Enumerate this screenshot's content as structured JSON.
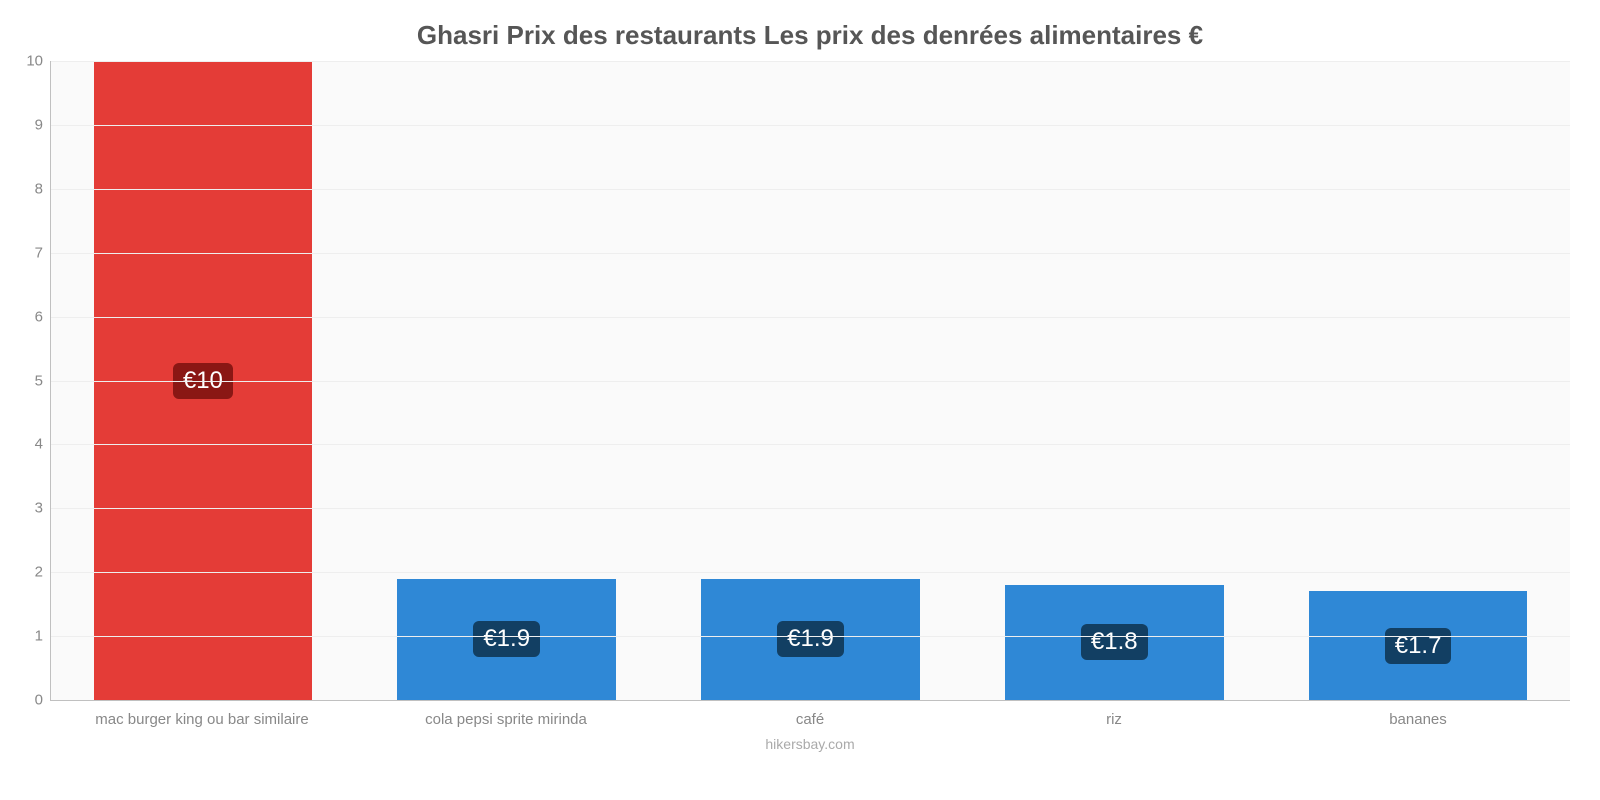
{
  "chart": {
    "type": "bar",
    "title": "Ghasri Prix des restaurants Les prix des denrées alimentaires €",
    "title_fontsize": 26,
    "title_color": "#565656",
    "background_color": "#fafafa",
    "grid_color": "#eeeeee",
    "axis_color": "#c0c0c0",
    "tick_color": "#888888",
    "tick_fontsize": 15,
    "xlabel_fontsize": 15,
    "credit": "hikersbay.com",
    "credit_fontsize": 14,
    "ymin": 0,
    "ymax": 10,
    "ytick_step": 1,
    "yticks": [
      "0",
      "1",
      "2",
      "3",
      "4",
      "5",
      "6",
      "7",
      "8",
      "9",
      "10"
    ],
    "bar_width": 0.72,
    "value_label_fontsize": 24,
    "categories": [
      "mac burger king ou bar similaire",
      "cola pepsi sprite mirinda",
      "café",
      "riz",
      "bananes"
    ],
    "values": [
      10,
      1.9,
      1.9,
      1.8,
      1.7
    ],
    "value_labels": [
      "€10",
      "€1.9",
      "€1.9",
      "€1.8",
      "€1.7"
    ],
    "bar_colors": [
      "#e43c37",
      "#2f88d6",
      "#2f88d6",
      "#2f88d6",
      "#2f88d6"
    ],
    "value_pill_colors": [
      "#8a1714",
      "#123f63",
      "#123f63",
      "#123f63",
      "#123f63"
    ]
  }
}
